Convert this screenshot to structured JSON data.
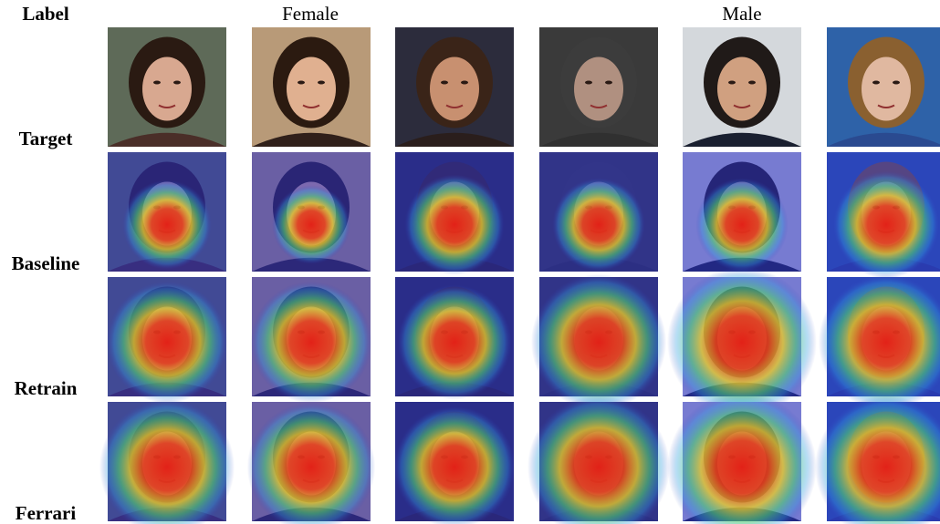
{
  "header": {
    "corner": "Label",
    "groups": [
      "Female",
      "Male"
    ]
  },
  "rows": [
    "Target",
    "Baseline",
    "Retrain",
    "Ferrari"
  ]
}
